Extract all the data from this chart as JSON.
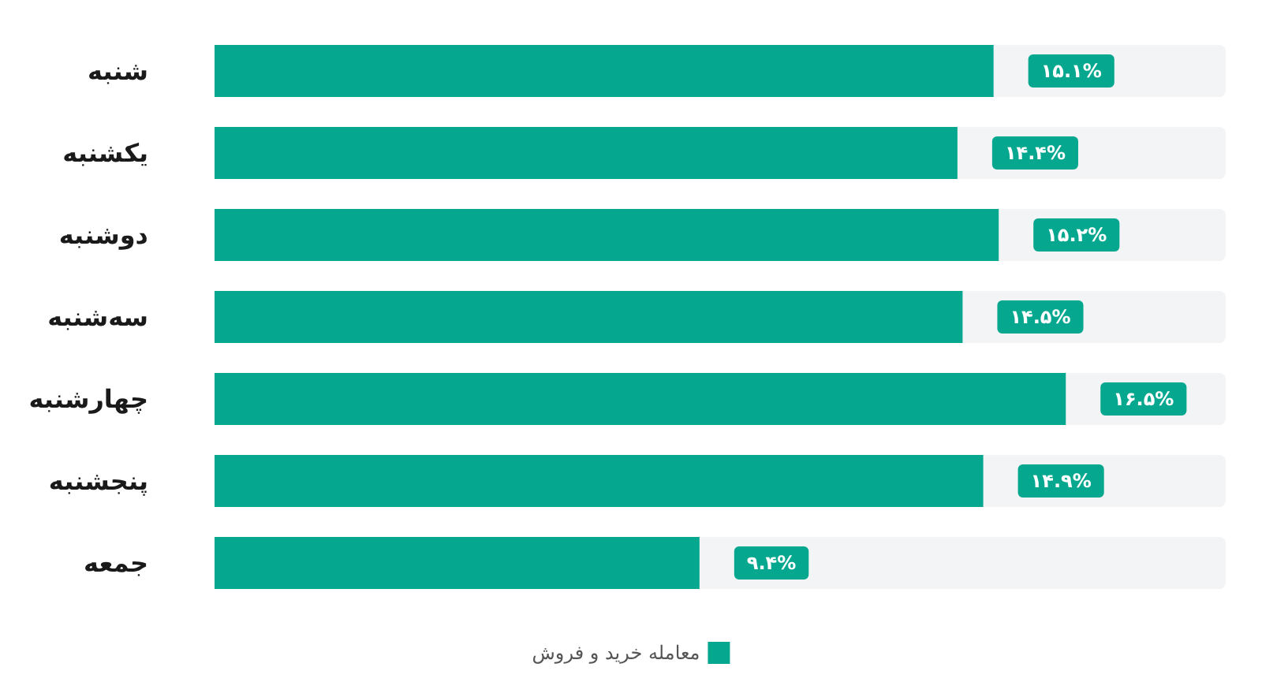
{
  "chart_data": {
    "type": "bar",
    "orientation": "horizontal",
    "categories": [
      "شنبه",
      "یکشنبه",
      "دوشنبه",
      "سه‌شنبه",
      "چهارشنبه",
      "پنجشنبه",
      "جمعه"
    ],
    "series": [
      {
        "name": "معامله خرید و فروش",
        "color": "#05a88f",
        "values": [
          15.1,
          14.4,
          15.2,
          14.5,
          16.5,
          14.9,
          9.4
        ],
        "value_labels": [
          "۱۵.۱%",
          "۱۴.۴%",
          "۱۵.۲%",
          "۱۴.۵%",
          "۱۶.۵%",
          "۱۴.۹%",
          "۹.۴%"
        ]
      }
    ],
    "xlim": [
      0,
      19.6
    ],
    "tick_labels": "y",
    "grid": false,
    "legend": "bottom"
  }
}
